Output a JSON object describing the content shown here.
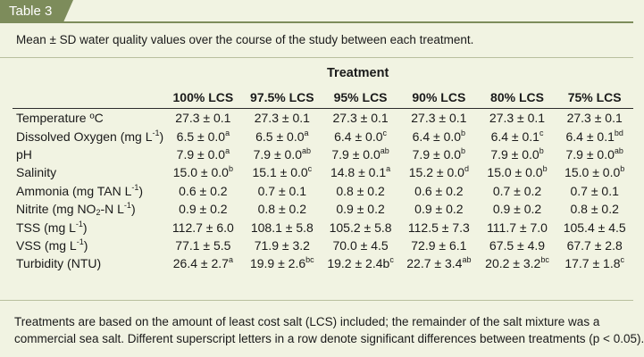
{
  "tab_label": "Table 3",
  "caption": "Mean ± SD water quality values over the course of the study between each treatment.",
  "group_header": "Treatment",
  "columns": [
    "100% LCS",
    "97.5% LCS",
    "95% LCS",
    "90% LCS",
    "80% LCS",
    "75% LCS"
  ],
  "rows": [
    {
      "label": "Temperature ºC",
      "label_pre": "Temperature ºC",
      "label_unit": "",
      "cells": [
        {
          "v": "27.3 ± 0.1",
          "s": ""
        },
        {
          "v": "27.3 ± 0.1",
          "s": ""
        },
        {
          "v": "27.3 ± 0.1",
          "s": ""
        },
        {
          "v": "27.3 ± 0.1",
          "s": ""
        },
        {
          "v": "27.3 ± 0.1",
          "s": ""
        },
        {
          "v": "27.3 ± 0.1",
          "s": ""
        }
      ]
    },
    {
      "label": "Dissolved Oxygen (mg L-1)",
      "label_pre": "Dissolved Oxygen (mg L",
      "label_unit": "-1",
      "label_post": ")",
      "cells": [
        {
          "v": "6.5 ± 0.0",
          "s": "a"
        },
        {
          "v": "6.5 ± 0.0",
          "s": "a"
        },
        {
          "v": "6.4 ± 0.0",
          "s": "c"
        },
        {
          "v": "6.4 ± 0.0",
          "s": "b"
        },
        {
          "v": "6.4 ± 0.1",
          "s": "c"
        },
        {
          "v": "6.4 ± 0.1",
          "s": "bd"
        }
      ]
    },
    {
      "label": "pH",
      "label_pre": "pH",
      "label_unit": "",
      "cells": [
        {
          "v": "7.9 ± 0.0",
          "s": "a"
        },
        {
          "v": "7.9 ± 0.0",
          "s": "ab"
        },
        {
          "v": "7.9 ± 0.0",
          "s": "ab"
        },
        {
          "v": "7.9 ± 0.0",
          "s": "b"
        },
        {
          "v": "7.9 ± 0.0",
          "s": "b"
        },
        {
          "v": "7.9 ± 0.0",
          "s": "ab"
        }
      ]
    },
    {
      "label": "Salinity",
      "label_pre": "Salinity",
      "label_unit": "",
      "cells": [
        {
          "v": "15.0 ± 0.0",
          "s": "b"
        },
        {
          "v": "15.1 ± 0.0",
          "s": "c"
        },
        {
          "v": "14.8 ± 0.1",
          "s": "a"
        },
        {
          "v": "15.2 ± 0.0",
          "s": "d"
        },
        {
          "v": "15.0 ± 0.0",
          "s": "b"
        },
        {
          "v": "15.0 ± 0.0",
          "s": "b"
        }
      ]
    },
    {
      "label": "Ammonia (mg TAN L-1)",
      "label_pre": "Ammonia (mg TAN L",
      "label_unit": "-1",
      "label_post": ")",
      "cells": [
        {
          "v": "0.6 ± 0.2",
          "s": ""
        },
        {
          "v": "0.7 ± 0.1",
          "s": ""
        },
        {
          "v": "0.8 ± 0.2",
          "s": ""
        },
        {
          "v": "0.6 ± 0.2",
          "s": ""
        },
        {
          "v": "0.7 ± 0.2",
          "s": ""
        },
        {
          "v": "0.7 ± 0.1",
          "s": ""
        }
      ]
    },
    {
      "label": "Nitrite (mg NO2-N L-1)",
      "label_pre": "Nitrite (mg NO",
      "label_sub": "2",
      "label_mid": "-N L",
      "label_unit": "-1",
      "label_post": ")",
      "cells": [
        {
          "v": "0.9 ± 0.2",
          "s": ""
        },
        {
          "v": "0.8 ± 0.2",
          "s": ""
        },
        {
          "v": "0.9 ± 0.2",
          "s": ""
        },
        {
          "v": "0.9 ± 0.2",
          "s": ""
        },
        {
          "v": "0.9 ± 0.2",
          "s": ""
        },
        {
          "v": "0.8 ± 0.2",
          "s": ""
        }
      ]
    },
    {
      "label": "TSS (mg L-1)",
      "label_pre": "TSS (mg L",
      "label_unit": "-1",
      "label_post": ")",
      "cells": [
        {
          "v": "112.7 ± 6.0",
          "s": ""
        },
        {
          "v": "108.1 ± 5.8",
          "s": ""
        },
        {
          "v": "105.2 ± 5.8",
          "s": ""
        },
        {
          "v": "112.5 ± 7.3",
          "s": ""
        },
        {
          "v": "111.7 ± 7.0",
          "s": ""
        },
        {
          "v": "105.4 ± 4.5",
          "s": ""
        }
      ]
    },
    {
      "label": "VSS (mg L-1)",
      "label_pre": "VSS (mg L",
      "label_unit": "-1",
      "label_post": ")",
      "cells": [
        {
          "v": "77.1 ± 5.5",
          "s": ""
        },
        {
          "v": "71.9 ± 3.2",
          "s": ""
        },
        {
          "v": "70.0 ± 4.5",
          "s": ""
        },
        {
          "v": "72.9 ± 6.1",
          "s": ""
        },
        {
          "v": "67.5 ± 4.9",
          "s": ""
        },
        {
          "v": "67.7 ± 2.8",
          "s": ""
        }
      ]
    },
    {
      "label": "Turbidity (NTU)",
      "label_pre": "Turbidity (NTU)",
      "label_unit": "",
      "cells": [
        {
          "v": "26.4 ± 2.7",
          "s": "a"
        },
        {
          "v": "19.9 ± 2.6",
          "s": "bc"
        },
        {
          "v": "19.2 ± 2.4b",
          "s": "c"
        },
        {
          "v": "22.7 ± 3.4",
          "s": "ab"
        },
        {
          "v": "20.2 ± 3.2",
          "s": "bc"
        },
        {
          "v": "17.7 ± 1.8",
          "s": "c"
        }
      ]
    }
  ],
  "footnote_line1": "Treatments are based on the amount of least cost salt (LCS) included; the remainder of the salt mixture was a",
  "footnote_line2": "commercial sea salt. Different superscript letters in a row denote significant differences between treatments (p < 0.05).",
  "colors": {
    "tab": "#7d8c5b",
    "background": "#f1f3e2",
    "separator": "#b9bf9e"
  }
}
